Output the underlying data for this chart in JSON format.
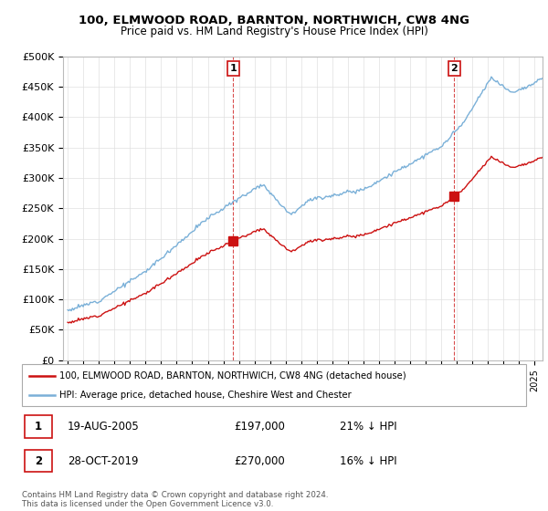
{
  "title": "100, ELMWOOD ROAD, BARNTON, NORTHWICH, CW8 4NG",
  "subtitle": "Price paid vs. HM Land Registry's House Price Index (HPI)",
  "ylabel_ticks": [
    "£0",
    "£50K",
    "£100K",
    "£150K",
    "£200K",
    "£250K",
    "£300K",
    "£350K",
    "£400K",
    "£450K",
    "£500K"
  ],
  "ytick_vals": [
    0,
    50000,
    100000,
    150000,
    200000,
    250000,
    300000,
    350000,
    400000,
    450000,
    500000
  ],
  "ylim": [
    0,
    500000
  ],
  "xlim_start": 1994.7,
  "xlim_end": 2025.5,
  "hpi_color": "#7ab0d8",
  "price_color": "#cc1111",
  "marker1_date": 2005.63,
  "marker2_date": 2019.83,
  "marker1_price": 197000,
  "marker2_price": 270000,
  "legend_label1": "100, ELMWOOD ROAD, BARNTON, NORTHWICH, CW8 4NG (detached house)",
  "legend_label2": "HPI: Average price, detached house, Cheshire West and Chester",
  "table_row1": [
    "1",
    "19-AUG-2005",
    "£197,000",
    "21% ↓ HPI"
  ],
  "table_row2": [
    "2",
    "28-OCT-2019",
    "£270,000",
    "16% ↓ HPI"
  ],
  "footer": "Contains HM Land Registry data © Crown copyright and database right 2024.\nThis data is licensed under the Open Government Licence v3.0.",
  "background_color": "#ffffff",
  "grid_color": "#e0e0e0",
  "title_fontsize": 9.5,
  "subtitle_fontsize": 8.5
}
